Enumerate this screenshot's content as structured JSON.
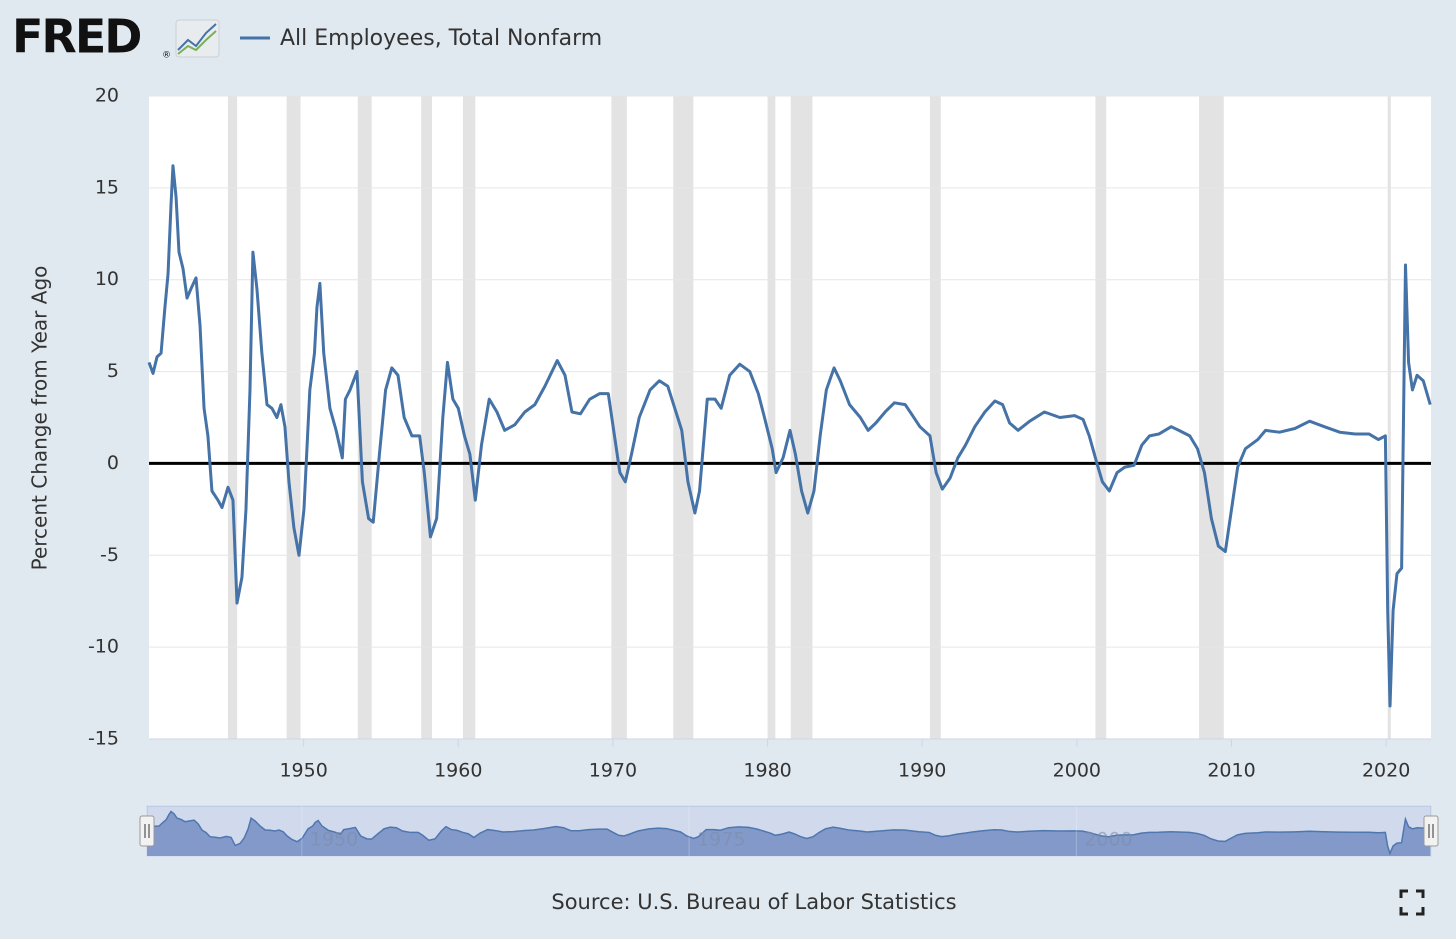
{
  "chart_data": {
    "type": "line",
    "logo": "FRED",
    "logo_mark": "®",
    "ylabel": "Percent Change from Year Ago",
    "source": "Source: U.S. Bureau of Labor Statistics",
    "x": [
      1940,
      1940.26,
      1940.52,
      1940.78,
      1941.03,
      1941.23,
      1941.42,
      1941.55,
      1941.75,
      1941.94,
      1942.2,
      1942.46,
      1942.71,
      1943.04,
      1943.3,
      1943.56,
      1943.81,
      1944.07,
      1944.46,
      1944.72,
      1945.11,
      1945.43,
      1945.69,
      1946.01,
      1946.27,
      1946.53,
      1946.72,
      1946.98,
      1947.3,
      1947.63,
      1947.95,
      1948.27,
      1948.53,
      1948.79,
      1949.05,
      1949.37,
      1949.7,
      1950.02,
      1950.4,
      1950.7,
      1950.86,
      1951.05,
      1951.3,
      1951.7,
      1952.1,
      1952.5,
      1952.7,
      1953,
      1953.45,
      1953.8,
      1954.2,
      1954.5,
      1954.9,
      1955.3,
      1955.7,
      1956.1,
      1956.5,
      1957,
      1957.5,
      1957.8,
      1958.2,
      1958.6,
      1959,
      1959.3,
      1959.65,
      1960,
      1960.4,
      1960.75,
      1961.1,
      1961.5,
      1962,
      1962.5,
      1963,
      1963.65,
      1964.3,
      1964.95,
      1965.6,
      1966.4,
      1966.9,
      1967.35,
      1967.9,
      1968.5,
      1969.15,
      1969.7,
      1970.1,
      1970.45,
      1970.8,
      1971.2,
      1971.7,
      1972.4,
      1973,
      1973.55,
      1974,
      1974.45,
      1974.85,
      1975.3,
      1975.6,
      1976.1,
      1976.6,
      1977,
      1977.55,
      1978.2,
      1978.85,
      1979.4,
      1979.8,
      1980.3,
      1980.55,
      1981,
      1981.45,
      1981.8,
      1982.2,
      1982.6,
      1983,
      1983.4,
      1983.8,
      1984.3,
      1984.7,
      1985.3,
      1986,
      1986.5,
      1987,
      1987.6,
      1988.2,
      1988.9,
      1989.3,
      1989.85,
      1990.5,
      1990.9,
      1991.3,
      1991.8,
      1992.3,
      1992.8,
      1993.4,
      1994.05,
      1994.7,
      1995.2,
      1995.65,
      1996.2,
      1996.95,
      1997.9,
      1998.9,
      1999.85,
      2000.4,
      2000.8,
      2001.3,
      2001.65,
      2002.1,
      2002.6,
      2003.1,
      2003.7,
      2004.2,
      2004.7,
      2005.3,
      2006.1,
      2006.6,
      2007.3,
      2007.8,
      2008.25,
      2008.7,
      2009.15,
      2009.6,
      2010,
      2010.4,
      2010.9,
      2011.7,
      2012.2,
      2013.1,
      2014.1,
      2015.05,
      2016,
      2017,
      2018,
      2018.9,
      2019.5,
      2019.95,
      2020.1,
      2020.25,
      2020.45,
      2020.7,
      2021,
      2021.1,
      2021.25,
      2021.45,
      2021.7,
      2022,
      2022.4,
      2022.85
    ],
    "series": [
      {
        "name": "All Employees, Total Nonfarm",
        "color": "#4572a7",
        "values": [
          5.5,
          4.9,
          5.8,
          6.0,
          8.5,
          10.3,
          14.0,
          16.2,
          14.5,
          11.5,
          10.6,
          9.0,
          9.5,
          10.1,
          7.5,
          3.0,
          1.5,
          -1.5,
          -2.0,
          -2.4,
          -1.3,
          -2.0,
          -7.6,
          -6.2,
          -2.5,
          4.0,
          11.5,
          9.5,
          6.0,
          3.2,
          3.0,
          2.5,
          3.2,
          2.0,
          -1.0,
          -3.5,
          -5.0,
          -2.5,
          4.0,
          6.0,
          8.5,
          9.8,
          6.0,
          3.0,
          1.8,
          0.3,
          3.5,
          4.0,
          5.0,
          -1.0,
          -3.0,
          -3.2,
          0.5,
          4.0,
          5.2,
          4.8,
          2.5,
          1.5,
          1.5,
          -0.5,
          -4.0,
          -3.0,
          2.5,
          5.5,
          3.5,
          3.0,
          1.5,
          0.5,
          -2.0,
          1.0,
          3.5,
          2.8,
          1.8,
          2.1,
          2.8,
          3.2,
          4.2,
          5.6,
          4.8,
          2.8,
          2.7,
          3.5,
          3.8,
          3.8,
          1.5,
          -0.5,
          -1.0,
          0.5,
          2.5,
          4.0,
          4.5,
          4.2,
          3.0,
          1.8,
          -1.0,
          -2.7,
          -1.5,
          3.5,
          3.5,
          3.0,
          4.8,
          5.4,
          5.0,
          3.8,
          2.5,
          0.8,
          -0.5,
          0.3,
          1.8,
          0.5,
          -1.5,
          -2.7,
          -1.5,
          1.5,
          4.0,
          5.2,
          4.5,
          3.2,
          2.5,
          1.8,
          2.2,
          2.8,
          3.3,
          3.2,
          2.7,
          2.0,
          1.5,
          -0.5,
          -1.4,
          -0.8,
          0.3,
          1.0,
          2.0,
          2.8,
          3.4,
          3.2,
          2.2,
          1.8,
          2.3,
          2.8,
          2.5,
          2.6,
          2.4,
          1.5,
          0.0,
          -1.0,
          -1.5,
          -0.5,
          -0.2,
          -0.1,
          1.0,
          1.5,
          1.6,
          2.0,
          1.8,
          1.5,
          0.8,
          -0.5,
          -3.0,
          -4.5,
          -4.8,
          -2.5,
          -0.2,
          0.8,
          1.3,
          1.8,
          1.7,
          1.9,
          2.3,
          2.0,
          1.7,
          1.6,
          1.6,
          1.3,
          1.5,
          -8.0,
          -13.2,
          -8.0,
          -6.0,
          -5.7,
          1.0,
          10.8,
          5.5,
          4.0,
          4.8,
          4.5,
          3.2
        ]
      }
    ],
    "xlim": [
      1940,
      2022.9
    ],
    "ylim": [
      -15,
      20
    ],
    "xticks": [
      1950,
      1960,
      1970,
      1980,
      1990,
      2000,
      2010,
      2020
    ],
    "yticks": [
      -15,
      -10,
      -5,
      0,
      5,
      10,
      15,
      20
    ],
    "grid": true,
    "zero_line": true,
    "recession_color": "#e3e3e3",
    "recessions": [
      [
        1945.1,
        1945.7
      ],
      [
        1948.9,
        1949.8
      ],
      [
        1953.5,
        1954.4
      ],
      [
        1957.6,
        1958.3
      ],
      [
        1960.3,
        1961.1
      ],
      [
        1969.9,
        1970.9
      ],
      [
        1973.9,
        1975.2
      ],
      [
        1980.0,
        1980.5
      ],
      [
        1981.5,
        1982.9
      ],
      [
        1990.5,
        1991.2
      ],
      [
        2001.2,
        2001.9
      ],
      [
        2007.9,
        2009.5
      ],
      [
        2020.1,
        2020.3
      ]
    ],
    "navigator": {
      "xticks": [
        1950,
        1975,
        2000
      ]
    }
  }
}
